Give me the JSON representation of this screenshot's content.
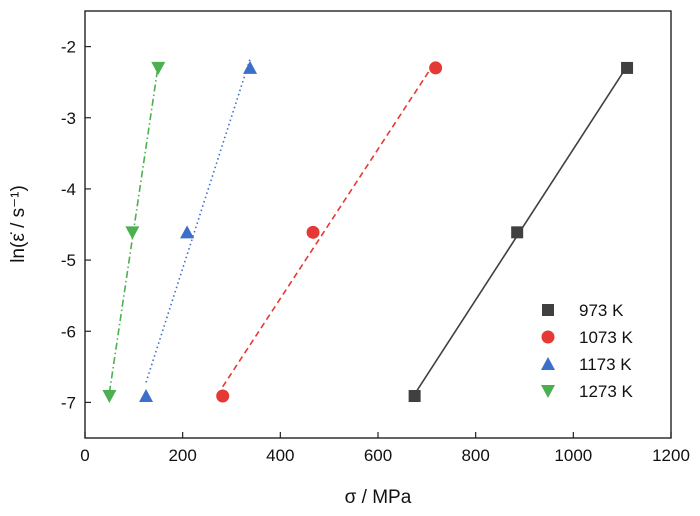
{
  "chart_data": {
    "type": "scatter",
    "xlabel": "σ / MPa",
    "ylabel": "ln(ε̇ / s⁻¹)",
    "xlim": [
      0,
      1200
    ],
    "ylim": [
      -7.5,
      -1.5
    ],
    "xticks": [
      0,
      200,
      400,
      600,
      800,
      1000,
      1200
    ],
    "yticks": [
      -2,
      -3,
      -4,
      -5,
      -6,
      -7
    ],
    "grid": false,
    "legend_position": "bottom-right",
    "series": [
      {
        "name": "973 K",
        "color": "#404040",
        "marker": "square",
        "line": "solid",
        "x": [
          675,
          885,
          1110
        ],
        "y": [
          -6.91,
          -4.61,
          -2.3
        ]
      },
      {
        "name": "1073 K",
        "color": "#e53935",
        "marker": "circle",
        "line": "dashed",
        "x": [
          282,
          467,
          718
        ],
        "y": [
          -6.91,
          -4.61,
          -2.3
        ]
      },
      {
        "name": "1173 K",
        "color": "#3b6fc9",
        "marker": "triangle-up",
        "line": "dotted",
        "x": [
          125,
          209,
          338
        ],
        "y": [
          -6.91,
          -4.61,
          -2.3
        ]
      },
      {
        "name": "1273 K",
        "color": "#4caf50",
        "marker": "triangle-down",
        "line": "dashdot",
        "x": [
          50,
          97,
          150
        ],
        "y": [
          -6.91,
          -4.61,
          -2.3
        ]
      }
    ]
  }
}
